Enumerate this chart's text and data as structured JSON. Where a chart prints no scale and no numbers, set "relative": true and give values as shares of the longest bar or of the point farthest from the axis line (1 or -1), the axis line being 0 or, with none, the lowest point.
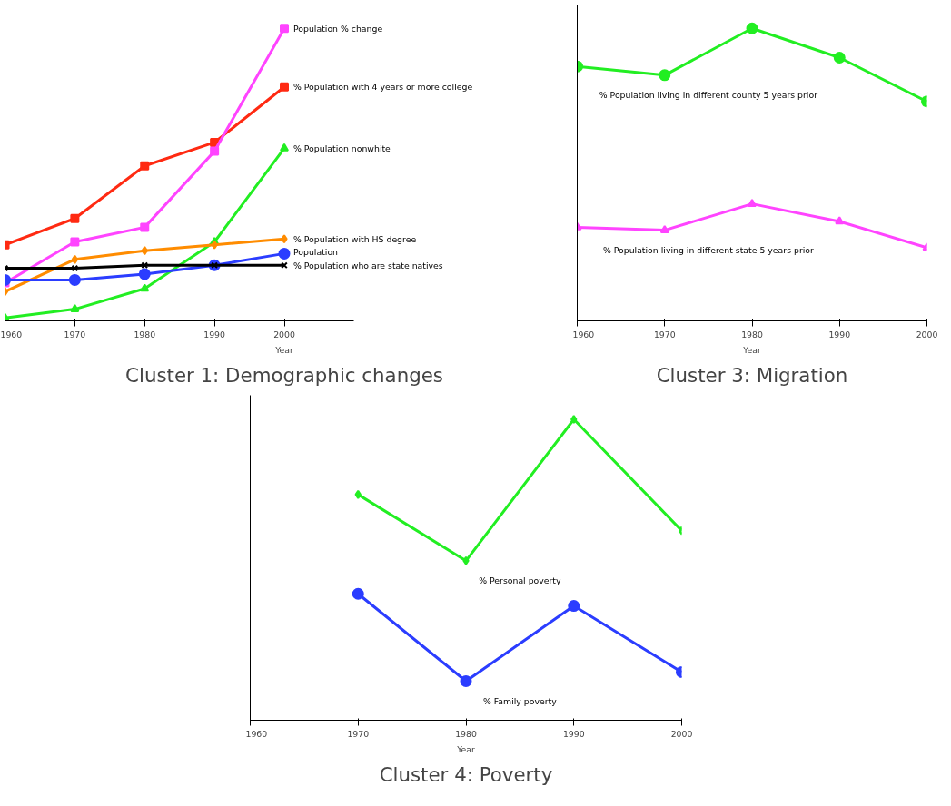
{
  "chart_data": [
    {
      "type": "line",
      "title": "Cluster 1: Demographic changes",
      "xlabel": "Year",
      "relative": true,
      "x": [
        1960,
        1970,
        1980,
        1990,
        2000
      ],
      "xlim": [
        1960,
        2010
      ],
      "xticks": [
        1960,
        1970,
        1980,
        1990,
        2000
      ],
      "grid": false,
      "legend": false,
      "line_style": "solid",
      "series": [
        {
          "name": "% Population with 4 years or more college",
          "color": "#ff2a12",
          "marker": "square",
          "values": [
            0.26,
            0.35,
            0.53,
            0.61,
            0.8
          ]
        },
        {
          "name": "Population % change",
          "color": "#ff44ff",
          "marker": "square",
          "values": [
            0.13,
            0.27,
            0.32,
            0.58,
            1
          ]
        },
        {
          "name": "% Population nonwhite",
          "color": "#22ee22",
          "marker": "triangle",
          "values": [
            0.01,
            0.04,
            0.11,
            0.27,
            0.59
          ]
        },
        {
          "name": "% Population with HS degree",
          "color": "#ff8c00",
          "marker": "diamond",
          "values": [
            0.1,
            0.21,
            0.24,
            0.26,
            0.28
          ]
        },
        {
          "name": "Population",
          "color": "#2b3dff",
          "marker": "circle",
          "values": [
            0.14,
            0.14,
            0.16,
            0.19,
            0.23
          ]
        },
        {
          "name": "% Population who are state natives",
          "color": "#000000",
          "marker": "cross",
          "values": [
            0.18,
            0.18,
            0.19,
            0.19,
            0.19
          ]
        }
      ]
    },
    {
      "type": "line",
      "title": "Cluster 3: Migration",
      "xlabel": "Year",
      "relative": true,
      "x": [
        1960,
        1970,
        1980,
        1990,
        2000
      ],
      "xlim": [
        1960,
        2000
      ],
      "xticks": [
        1960,
        1970,
        1980,
        1990,
        2000
      ],
      "grid": false,
      "legend": false,
      "line_style": "solid",
      "series": [
        {
          "name": "% Population living in different county 5 years prior",
          "color": "#22ee22",
          "marker": "circle",
          "values": [
            0.87,
            0.84,
            1,
            0.9,
            0.75
          ]
        },
        {
          "name": "% Population living in different state 5 years prior",
          "color": "#ff44ff",
          "marker": "triangle",
          "values": [
            0.32,
            0.31,
            0.4,
            0.34,
            0.25
          ]
        }
      ]
    },
    {
      "type": "line",
      "title": "Cluster 4: Poverty",
      "xlabel": "Year",
      "relative": true,
      "x": [
        1970,
        1980,
        1990,
        2000
      ],
      "xlim": [
        1960,
        2000
      ],
      "xticks": [
        1960,
        1970,
        1980,
        1990,
        2000
      ],
      "grid": false,
      "legend": false,
      "line_style": "solid",
      "series": [
        {
          "name": "% Personal poverty",
          "color": "#22ee22",
          "marker": "diamond",
          "values": [
            0.75,
            0.53,
            1,
            0.63
          ]
        },
        {
          "name": "% Family poverty",
          "color": "#2b3dff",
          "marker": "circle",
          "values": [
            0.42,
            0.13,
            0.38,
            0.16
          ]
        }
      ]
    }
  ]
}
